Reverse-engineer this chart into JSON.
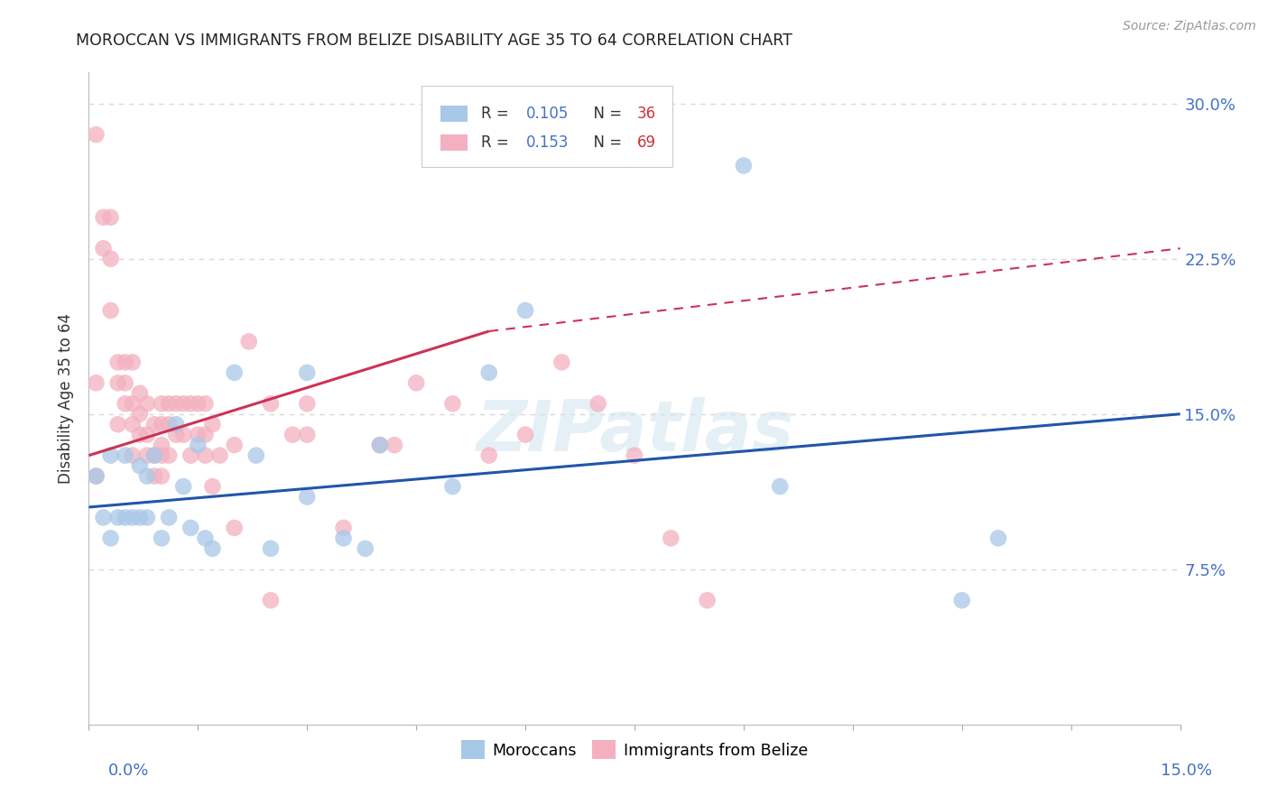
{
  "title": "MOROCCAN VS IMMIGRANTS FROM BELIZE DISABILITY AGE 35 TO 64 CORRELATION CHART",
  "source": "Source: ZipAtlas.com",
  "ylabel": "Disability Age 35 to 64",
  "xlim": [
    0.0,
    0.15
  ],
  "ylim": [
    0.0,
    0.315
  ],
  "blue_R": 0.105,
  "blue_N": 36,
  "pink_R": 0.153,
  "pink_N": 69,
  "blue_color": "#a8c8e8",
  "pink_color": "#f4b0c0",
  "blue_line_color": "#2255aa",
  "pink_line_color": "#cc3355",
  "blue_line_x0": 0.0,
  "blue_line_y0": 0.105,
  "blue_line_x1": 0.15,
  "blue_line_y1": 0.15,
  "pink_line_x0": 0.0,
  "pink_line_y0": 0.13,
  "pink_line_xsolid": 0.055,
  "pink_line_ysolid": 0.19,
  "pink_line_x1": 0.15,
  "pink_line_y1": 0.23,
  "ytick_vals": [
    0.075,
    0.15,
    0.225,
    0.3
  ],
  "ytick_labels": [
    "7.5%",
    "15.0%",
    "22.5%",
    "30.0%"
  ],
  "grid_color": "#d8d8d8",
  "tick_color": "#aaaaaa",
  "label_color": "#4472c4",
  "watermark": "ZIPatlas",
  "background_color": "#ffffff",
  "blue_x": [
    0.001,
    0.002,
    0.003,
    0.003,
    0.004,
    0.005,
    0.005,
    0.006,
    0.007,
    0.007,
    0.008,
    0.008,
    0.009,
    0.01,
    0.011,
    0.012,
    0.013,
    0.014,
    0.015,
    0.016,
    0.017,
    0.02,
    0.023,
    0.025,
    0.03,
    0.03,
    0.035,
    0.038,
    0.04,
    0.05,
    0.055,
    0.06,
    0.09,
    0.095,
    0.12,
    0.125
  ],
  "blue_y": [
    0.12,
    0.1,
    0.13,
    0.09,
    0.1,
    0.13,
    0.1,
    0.1,
    0.125,
    0.1,
    0.12,
    0.1,
    0.13,
    0.09,
    0.1,
    0.145,
    0.115,
    0.095,
    0.135,
    0.09,
    0.085,
    0.17,
    0.13,
    0.085,
    0.17,
    0.11,
    0.09,
    0.085,
    0.135,
    0.115,
    0.17,
    0.2,
    0.27,
    0.115,
    0.06,
    0.09
  ],
  "pink_x": [
    0.001,
    0.001,
    0.001,
    0.002,
    0.002,
    0.003,
    0.003,
    0.003,
    0.004,
    0.004,
    0.004,
    0.005,
    0.005,
    0.005,
    0.006,
    0.006,
    0.006,
    0.006,
    0.007,
    0.007,
    0.007,
    0.008,
    0.008,
    0.008,
    0.009,
    0.009,
    0.009,
    0.01,
    0.01,
    0.01,
    0.01,
    0.01,
    0.011,
    0.011,
    0.011,
    0.012,
    0.012,
    0.013,
    0.013,
    0.014,
    0.014,
    0.015,
    0.015,
    0.016,
    0.016,
    0.016,
    0.017,
    0.017,
    0.018,
    0.02,
    0.02,
    0.022,
    0.025,
    0.025,
    0.028,
    0.03,
    0.03,
    0.035,
    0.04,
    0.042,
    0.045,
    0.05,
    0.055,
    0.06,
    0.065,
    0.07,
    0.075,
    0.08,
    0.085
  ],
  "pink_y": [
    0.285,
    0.165,
    0.12,
    0.245,
    0.23,
    0.245,
    0.225,
    0.2,
    0.175,
    0.165,
    0.145,
    0.175,
    0.165,
    0.155,
    0.175,
    0.155,
    0.145,
    0.13,
    0.16,
    0.15,
    0.14,
    0.155,
    0.14,
    0.13,
    0.145,
    0.13,
    0.12,
    0.155,
    0.145,
    0.135,
    0.13,
    0.12,
    0.155,
    0.145,
    0.13,
    0.155,
    0.14,
    0.155,
    0.14,
    0.155,
    0.13,
    0.155,
    0.14,
    0.155,
    0.14,
    0.13,
    0.145,
    0.115,
    0.13,
    0.135,
    0.095,
    0.185,
    0.155,
    0.06,
    0.14,
    0.155,
    0.14,
    0.095,
    0.135,
    0.135,
    0.165,
    0.155,
    0.13,
    0.14,
    0.175,
    0.155,
    0.13,
    0.09,
    0.06
  ]
}
